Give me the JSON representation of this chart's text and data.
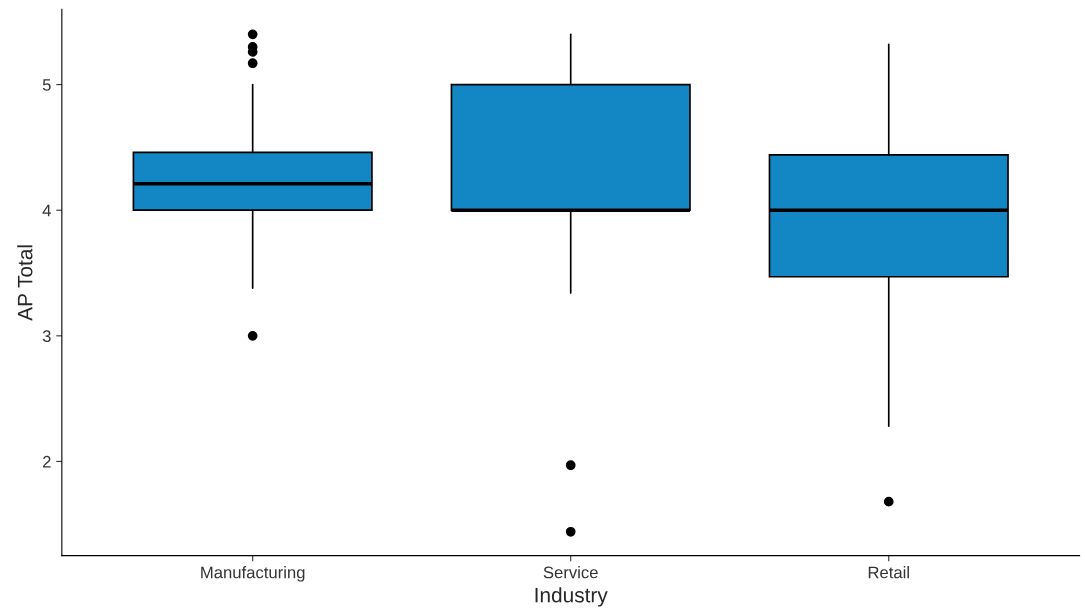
{
  "chart_data": {
    "type": "box",
    "xlabel": "Industry",
    "ylabel": "AP Total",
    "categories": [
      "Manufacturing",
      "Service",
      "Retail"
    ],
    "boxes": [
      {
        "low": 3.38,
        "q1": 4.0,
        "median": 4.21,
        "q3": 4.46,
        "high": 5.0,
        "outliers": [
          5.4,
          5.3,
          5.26,
          5.17,
          3.0
        ]
      },
      {
        "low": 3.34,
        "q1": 4.0,
        "median": 4.0,
        "q3": 5.0,
        "high": 5.4,
        "outliers": [
          1.97,
          1.44
        ]
      },
      {
        "low": 2.28,
        "q1": 3.47,
        "median": 4.0,
        "q3": 4.44,
        "high": 5.32,
        "outliers": [
          1.68
        ]
      }
    ],
    "color": "#1287c4",
    "ylim": [
      1.25,
      5.6
    ],
    "yticks": [
      2,
      3,
      4,
      5
    ],
    "grid": false,
    "legend": false
  }
}
